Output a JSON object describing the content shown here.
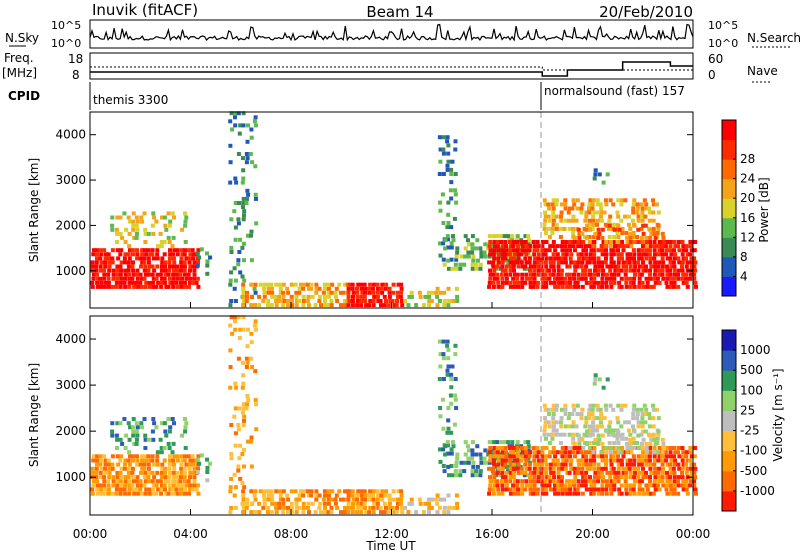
{
  "header": {
    "station": "Inuvik (fitACF)",
    "beam": "Beam 14",
    "date": "20/Feb/2010"
  },
  "strips": {
    "nsky": {
      "label": "N.Sky",
      "ticks": [
        "10^5",
        "10^0"
      ]
    },
    "nsearch": {
      "label": "N.Search",
      "ticks": [
        "10^5",
        "10^0"
      ]
    },
    "freq": {
      "label_1": "Freq.",
      "label_2": "[MHz]",
      "ticks": [
        "18",
        "8"
      ]
    },
    "nave": {
      "label": "Nave",
      "ticks": [
        "60",
        "0"
      ]
    },
    "cpid": {
      "label": "CPID",
      "modes": [
        "themis 3300",
        "normalsound (fast) 157"
      ]
    }
  },
  "colors": {
    "power": [
      "#1a1aff",
      "#1f58b8",
      "#3a8a55",
      "#5db84d",
      "#d8d22a",
      "#f5a41a",
      "#ff6a00",
      "#ff2a00",
      "#ff0000"
    ],
    "velocity": [
      "#ff1a00",
      "#ff6a00",
      "#ff9a00",
      "#ffbf3a",
      "#bebebe",
      "#8fd16a",
      "#2e9a57",
      "#2e5ab8",
      "#1a1ab3"
    ],
    "grid": "#bbbbbb",
    "line": "#000000"
  },
  "chart_data": [
    {
      "type": "heatmap",
      "panel": "power",
      "ylabel": "Slant Range [km]",
      "ylim": [
        180,
        4500
      ],
      "y_ticks": [
        "1000",
        "2000",
        "3000",
        "4000"
      ],
      "colorbar": {
        "label": "Power [dB]",
        "ticks": [
          "4",
          "8",
          "12",
          "16",
          "20",
          "24",
          "28"
        ]
      }
    },
    {
      "type": "heatmap",
      "panel": "velocity",
      "ylabel": "Slant Range [km]",
      "xlabel": "Time UT",
      "ylim": [
        180,
        4500
      ],
      "y_ticks": [
        "1000",
        "2000",
        "3000",
        "4000"
      ],
      "x_ticks": [
        "00:00",
        "04:00",
        "08:00",
        "12:00",
        "16:00",
        "20:00",
        "00:00"
      ],
      "colorbar": {
        "label": "Velocity [m s⁻¹]",
        "ticks": [
          "1000",
          "500",
          "100",
          "25",
          "-25",
          "-100",
          "-500",
          "-1000"
        ]
      }
    }
  ]
}
